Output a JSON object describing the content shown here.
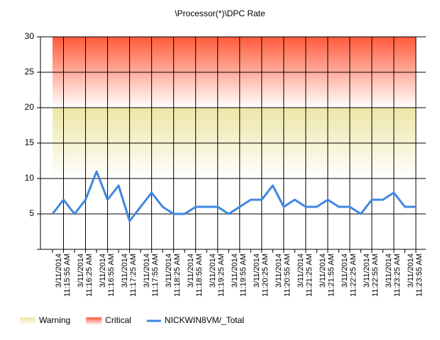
{
  "chart_data": {
    "type": "line",
    "title": "\\Processor(*)\\DPC Rate",
    "categories": [
      null,
      "3/11/2014\n11:15:55 AM",
      null,
      "3/11/2014\n11:16:25 AM",
      null,
      "3/11/2014\n11:16:55 AM",
      null,
      "3/11/2014\n11:17:25 AM",
      null,
      "3/11/2014\n11:17:55 AM",
      null,
      "3/11/2014\n11:18:25 AM",
      null,
      "3/11/2014\n11:18:55 AM",
      null,
      "3/11/2014\n11:19:25 AM",
      null,
      "3/11/2014\n11:19:55 AM",
      null,
      "3/11/2014\n11:20:25 AM",
      null,
      "3/11/2014\n11:20:55 AM",
      null,
      "3/11/2014\n11:21:25 AM",
      null,
      "3/11/2014\n11:21:55 AM",
      null,
      "3/11/2014\n11:22:25 AM",
      null,
      "3/11/2014\n11:22:55 AM",
      null,
      "3/11/2014\n11:23:25 AM",
      null,
      "3/11/2014\n11:23:55 AM"
    ],
    "series": [
      {
        "name": "NICKWIN8VM/_Total",
        "color": "#3f87e0",
        "values": [
          5,
          7,
          5,
          7,
          11,
          7,
          9,
          4,
          6,
          8,
          6,
          5,
          5,
          6,
          6,
          6,
          5,
          6,
          7,
          7,
          9,
          6,
          7,
          6,
          6,
          7,
          6,
          6,
          5,
          7,
          7,
          8,
          6,
          6
        ]
      }
    ],
    "bands": [
      {
        "name": "Warning",
        "range": [
          10,
          20
        ],
        "color": "#ece6a6"
      },
      {
        "name": "Critical",
        "range": [
          20,
          30
        ],
        "color": "#ff5a3a"
      }
    ],
    "ylim": [
      0,
      30
    ],
    "yticks": [
      5,
      10,
      15,
      20,
      25,
      30
    ],
    "grid": true,
    "legend": "bottom"
  }
}
